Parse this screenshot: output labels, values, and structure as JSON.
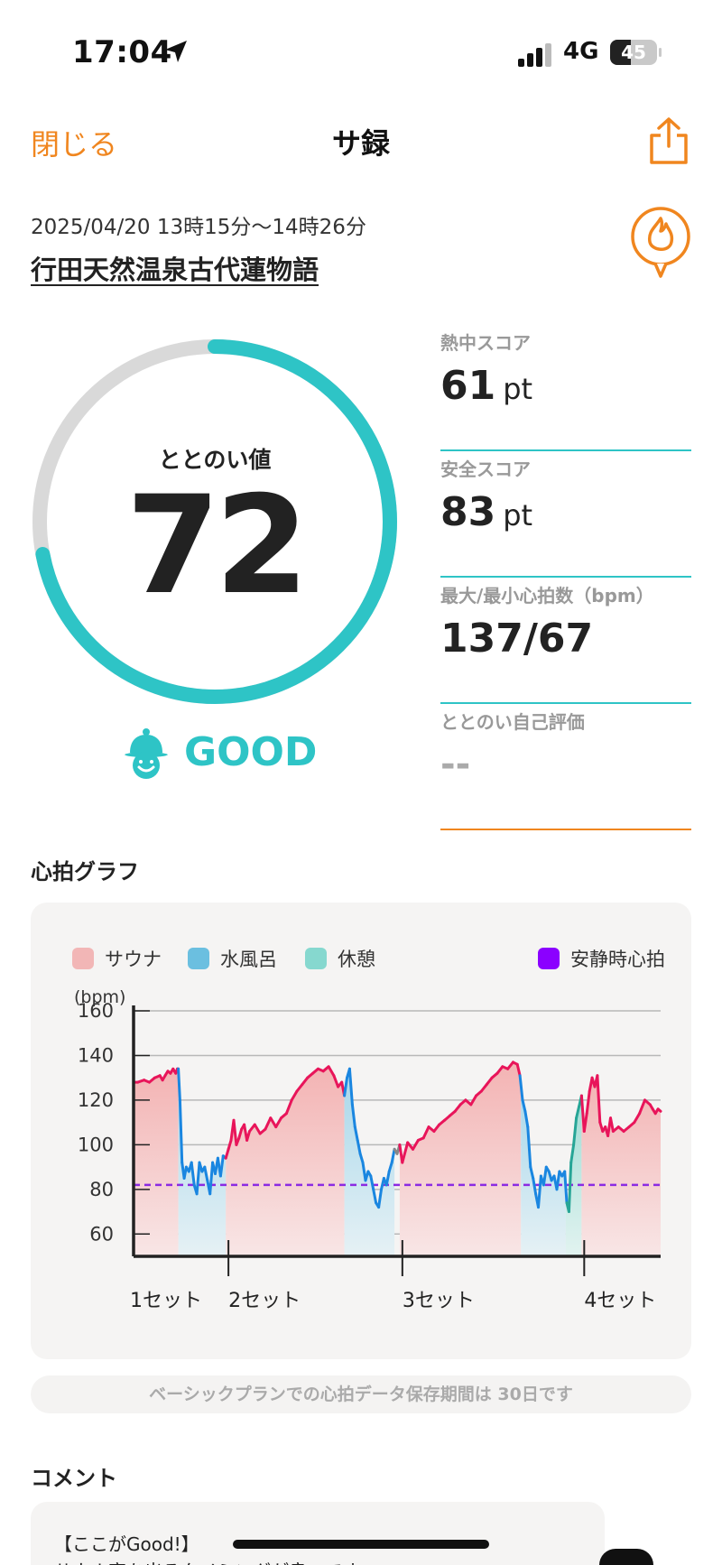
{
  "status_bar": {
    "time": "17:04",
    "network": "4G",
    "battery": "45",
    "battery_level": 0.45
  },
  "nav": {
    "close_label": "閉じる",
    "title": "サ録"
  },
  "session": {
    "time_range": "2025/04/20 13時15分〜14時26分",
    "facility": "行田天然温泉古代蓮物語"
  },
  "gauge": {
    "label": "ととのい値",
    "value": "72",
    "fraction": 0.72,
    "grade": "GOOD",
    "track_color": "#d9d9d9",
    "fill_color": "#2ec4c6"
  },
  "stats": {
    "heat": {
      "label": "熱中スコア",
      "value": "61",
      "unit": "pt"
    },
    "safety": {
      "label": "安全スコア",
      "value": "83",
      "unit": "pt"
    },
    "heart_rate": {
      "label": "最大/最小心拍数（bpm）",
      "value": "137/67"
    },
    "self_eval": {
      "label": "ととのい自己評価",
      "value": "--"
    }
  },
  "graph_section": {
    "title": "心拍グラフ"
  },
  "chart_data": {
    "type": "line",
    "ylabel": "(bpm)",
    "ylim": [
      50,
      160
    ],
    "yticks": [
      "60",
      "80",
      "100",
      "120",
      "140",
      "160"
    ],
    "ytick_values": [
      60,
      80,
      100,
      120,
      140,
      160
    ],
    "grid": true,
    "legend": [
      {
        "name": "サウナ",
        "color": "#f2b6b6"
      },
      {
        "name": "水風呂",
        "color": "#6bbfe0"
      },
      {
        "name": "休憩",
        "color": "#86d8cf"
      },
      {
        "name": "安静時心拍",
        "color": "#8b00ff"
      }
    ],
    "resting_hr": 82,
    "x_range": [
      0,
      100
    ],
    "set_labels": [
      {
        "label": "1セット",
        "x": 0
      },
      {
        "label": "2セット",
        "x": 18
      },
      {
        "label": "3セット",
        "x": 51
      },
      {
        "label": "4セット",
        "x": 85.5
      }
    ],
    "phases": [
      {
        "type": "sauna",
        "start": 0,
        "end": 8.5
      },
      {
        "type": "cold",
        "start": 8.5,
        "end": 17.5
      },
      {
        "type": "sauna",
        "start": 17.5,
        "end": 40.0
      },
      {
        "type": "cold",
        "start": 40.0,
        "end": 49.5
      },
      {
        "type": "sauna",
        "start": 50.5,
        "end": 73.5
      },
      {
        "type": "cold",
        "start": 73.5,
        "end": 82.0
      },
      {
        "type": "rest",
        "start": 82.0,
        "end": 85.0
      },
      {
        "type": "sauna",
        "start": 85.0,
        "end": 100
      }
    ],
    "series": [
      {
        "x": [
          0,
          0.8,
          2,
          3,
          4,
          5,
          5.5,
          6,
          6.5,
          7,
          7.5,
          8,
          8.3,
          8.5,
          8.8,
          9.2,
          9.6,
          10,
          10.5,
          11,
          11.5,
          12,
          12.5,
          13,
          13.5,
          14,
          14.5,
          15,
          15.5,
          16,
          16.5,
          17,
          17.5,
          18,
          18.5,
          19,
          19.5,
          20,
          20.5,
          21,
          21.5,
          22,
          23,
          24,
          25,
          26,
          27,
          28,
          29,
          30,
          31,
          32,
          33,
          34,
          35,
          36,
          37,
          38,
          38.8,
          39.5,
          40,
          40.5,
          41,
          41.5,
          42,
          42.5,
          43,
          43.5,
          44,
          44.5,
          45,
          45.5,
          46,
          46.5,
          47,
          47.5,
          48,
          48.5,
          49,
          49.5,
          50,
          50.5,
          51,
          52,
          53,
          54,
          55,
          56,
          57,
          58,
          59,
          60,
          61,
          62,
          63,
          64,
          65,
          66,
          67,
          68,
          69,
          70,
          71,
          72,
          72.8,
          73.3,
          73.8,
          74.3,
          74.8,
          75.3,
          75.8,
          76.3,
          76.8,
          77.3,
          77.8,
          78.3,
          78.8,
          79.3,
          79.8,
          80.3,
          80.8,
          81.3,
          81.8,
          82.2,
          82.6,
          83,
          83.5,
          84,
          84.5,
          85,
          85.5,
          86,
          86.5,
          87,
          87.5,
          88,
          88.5,
          89,
          89.5,
          90,
          90.5,
          91,
          92,
          93,
          94,
          95,
          96,
          97,
          98,
          98.5,
          99,
          99.5,
          100
        ],
        "values": [
          128,
          128,
          129,
          128,
          130,
          131,
          129,
          131,
          133,
          132,
          134,
          132,
          134,
          134,
          120,
          92,
          85,
          90,
          88,
          92,
          82,
          78,
          92,
          88,
          90,
          84,
          78,
          92,
          87,
          94,
          86,
          95,
          94,
          98,
          102,
          111,
          100,
          103,
          107,
          109,
          102,
          106,
          109,
          105,
          107,
          112,
          108,
          112,
          114,
          120,
          124,
          127,
          130,
          132,
          134,
          133,
          135,
          131,
          126,
          128,
          122,
          130,
          134,
          118,
          108,
          102,
          96,
          92,
          84,
          88,
          86,
          80,
          74,
          72,
          80,
          85,
          82,
          88,
          92,
          98,
          96,
          100,
          92,
          101,
          98,
          102,
          103,
          108,
          106,
          109,
          111,
          113,
          115,
          118,
          120,
          118,
          122,
          124,
          127,
          130,
          132,
          135,
          134,
          137,
          136,
          131,
          120,
          115,
          108,
          90,
          85,
          78,
          72,
          86,
          82,
          90,
          88,
          84,
          86,
          80,
          88,
          86,
          88,
          74,
          70,
          92,
          100,
          112,
          117,
          122,
          106,
          114,
          124,
          130,
          126,
          131,
          110,
          106,
          108,
          104,
          112,
          106,
          108,
          106,
          108,
          110,
          114,
          120,
          118,
          116,
          114,
          116,
          115
        ]
      }
    ]
  },
  "storage_note": "ベーシックプランでの心拍データ保存期間は 30日です",
  "comment_section": {
    "title": "コメント",
    "text": "【ここがGood!】\nサウナ室を出るタイミングが良いです"
  }
}
